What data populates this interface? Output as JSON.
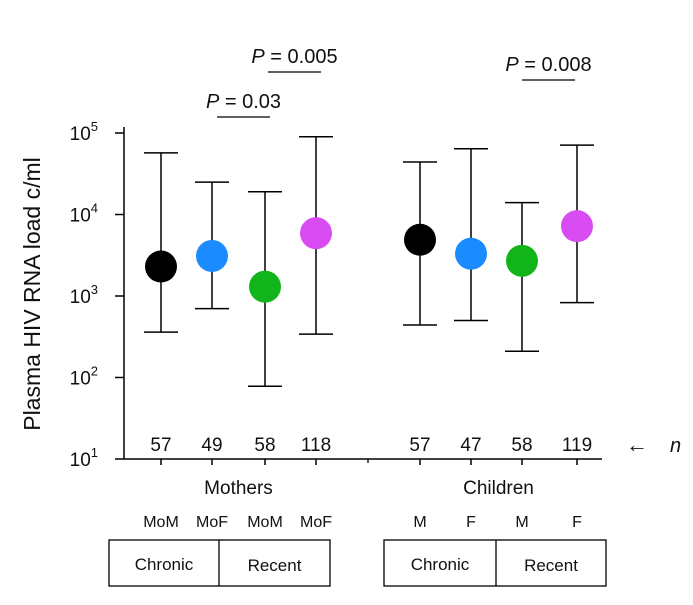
{
  "chart_data": {
    "type": "scatter",
    "title": "",
    "ylabel": "Plasma HIV RNA load c/ml",
    "yscale": "log",
    "ylim": [
      10,
      100000
    ],
    "y_ticks": [
      {
        "value": 10,
        "base": "10",
        "exp": "1"
      },
      {
        "value": 100,
        "base": "10",
        "exp": "2"
      },
      {
        "value": 1000,
        "base": "10",
        "exp": "3"
      },
      {
        "value": 10000,
        "base": "10",
        "exp": "4"
      },
      {
        "value": 100000,
        "base": "10",
        "exp": "5"
      }
    ],
    "groups": [
      {
        "label": "Mothers",
        "subgroups": [
          {
            "label": "MoM",
            "stage": "Chronic",
            "n": "57",
            "median": 2300,
            "low": 360,
            "high": 57000,
            "color": "#000000"
          },
          {
            "label": "MoF",
            "stage": "Chronic",
            "n": "49",
            "median": 3100,
            "low": 700,
            "high": 25000,
            "color": "#1a8cff"
          },
          {
            "label": "MoM",
            "stage": "Recent",
            "n": "58",
            "median": 1300,
            "low": 78,
            "high": 19000,
            "color": "#11b51a"
          },
          {
            "label": "MoF",
            "stage": "Recent",
            "n": "118",
            "median": 5900,
            "low": 340,
            "high": 90000,
            "color": "#d94cf2"
          }
        ]
      },
      {
        "label": "Children",
        "subgroups": [
          {
            "label": "M",
            "stage": "Chronic",
            "n": "57",
            "median": 4900,
            "low": 440,
            "high": 44000,
            "color": "#000000"
          },
          {
            "label": "F",
            "stage": "Chronic",
            "n": "47",
            "median": 3300,
            "low": 500,
            "high": 64000,
            "color": "#1a8cff"
          },
          {
            "label": "M",
            "stage": "Recent",
            "n": "58",
            "median": 2700,
            "low": 210,
            "high": 14000,
            "color": "#11b51a"
          },
          {
            "label": "F",
            "stage": "Recent",
            "n": "119",
            "median": 7200,
            "low": 830,
            "high": 71000,
            "color": "#d94cf2"
          }
        ]
      }
    ],
    "stage_boxes": [
      {
        "group": "Mothers",
        "labels": [
          "Chronic",
          "Recent"
        ]
      },
      {
        "group": "Children",
        "labels": [
          "Chronic",
          "Recent"
        ]
      }
    ],
    "annotations": [
      {
        "p_label": "P",
        "p_value": " = 0.03",
        "between": [
          1,
          2
        ]
      },
      {
        "p_label": "P",
        "p_value": " = 0.005",
        "between": [
          2,
          3
        ]
      },
      {
        "p_label": "P",
        "p_value": " = 0.008",
        "between": [
          6,
          7
        ]
      }
    ],
    "n_marker": {
      "arrow": "←",
      "label": "n"
    },
    "style": {
      "axis_color": "#000000",
      "line_color": "#000000"
    }
  }
}
